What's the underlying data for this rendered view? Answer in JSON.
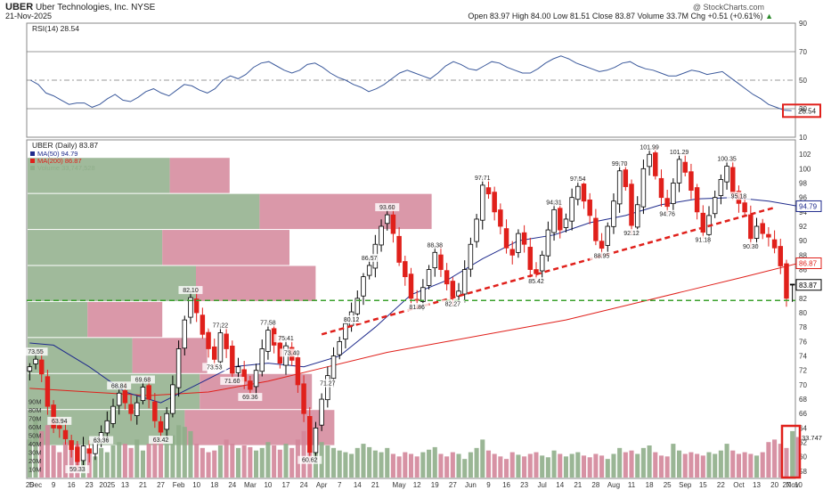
{
  "header": {
    "symbol": "UBER",
    "company": "Uber Technologies, Inc.",
    "exchange": "NYSE",
    "date": "21-Nov-2025",
    "watermark": "@ StockCharts.com",
    "ohlc_text": "Open 83.97  High 84.00  Low 81.51  Close 83.87  Volume 33.7M  Chg +0.51 (+0.61%)",
    "change_marker": "▲"
  },
  "colors": {
    "up": "#000000",
    "down": "#e0201b",
    "ma50": "#1f2b8c",
    "ma200": "#e0201b",
    "rsi": "#3c5a9c",
    "vbp_up": "#8fae8a",
    "vbp_down": "#d3869a",
    "trend": "#e0201b",
    "support": "#3aa02c",
    "highlight": "#e0201b"
  },
  "chart_data": [
    {
      "type": "line",
      "panel": "RSI",
      "title": "RSI(14) 28.54",
      "ylim": [
        10,
        90
      ],
      "y_ticks": [
        10,
        30,
        50,
        70,
        90
      ],
      "reference_lines": [
        30,
        50,
        70
      ],
      "last_value": 28.54,
      "last_label": "28.54",
      "values": [
        50,
        47,
        41,
        39,
        36,
        33,
        34,
        34,
        31,
        33,
        37,
        40,
        36,
        35,
        38,
        42,
        44,
        41,
        39,
        43,
        47,
        46,
        43,
        41,
        44,
        50,
        53,
        51,
        54,
        59,
        62,
        63,
        60,
        57,
        55,
        57,
        61,
        62,
        59,
        55,
        52,
        50,
        47,
        45,
        42,
        44,
        47,
        51,
        55,
        57,
        55,
        53,
        51,
        55,
        60,
        63,
        61,
        58,
        57,
        60,
        63,
        62,
        59,
        57,
        55,
        55,
        58,
        62,
        65,
        67,
        65,
        62,
        60,
        58,
        56,
        57,
        59,
        62,
        63,
        60,
        58,
        57,
        55,
        53,
        53,
        55,
        57,
        56,
        54,
        55,
        56,
        52,
        48,
        44,
        40,
        37,
        33,
        31,
        29,
        28.54
      ]
    },
    {
      "type": "candlestick",
      "panel": "Price",
      "title": "UBER (Daily) 83.87",
      "legend": [
        "MA(50) 94.79",
        "MA(200) 86.87",
        "Volume 33,747,528"
      ],
      "legend_colors": [
        "#1f2b8c",
        "#e0201b",
        "#8fae8a"
      ],
      "ylim": [
        57,
        104
      ],
      "y_ticks": [
        58,
        60,
        62,
        64,
        66,
        68,
        70,
        72,
        74,
        76,
        78,
        80,
        82,
        84,
        86,
        88,
        90,
        92,
        94,
        96,
        98,
        100,
        102
      ],
      "vol_ticks": [
        10,
        20,
        30,
        40,
        50,
        60,
        70,
        80,
        90
      ],
      "vol_tick_labels": [
        "10M",
        "20M",
        "30M",
        "40M",
        "50M",
        "60M",
        "70M",
        "80M",
        "90M"
      ],
      "closes": [
        72.5,
        73.55,
        71.5,
        67.0,
        64.0,
        63.94,
        62.5,
        61.0,
        59.33,
        61.5,
        60.5,
        62.0,
        63.36,
        65.0,
        67.0,
        68.84,
        67.5,
        66.0,
        67.5,
        69.68,
        68.0,
        65.0,
        63.42,
        66.0,
        70.0,
        75.0,
        79.0,
        82.1,
        80.0,
        77.0,
        75.0,
        73.53,
        77.22,
        75.0,
        71.6,
        72.5,
        70.5,
        69.36,
        72.0,
        75.0,
        77.58,
        75.5,
        73.0,
        75.41,
        73.4,
        70.0,
        66.0,
        60.62,
        64.0,
        68.0,
        71.27,
        74.0,
        76.0,
        78.5,
        80.12,
        82.0,
        85.0,
        86.57,
        89.5,
        92.0,
        93.6,
        91.0,
        87.0,
        85.0,
        82.0,
        81.86,
        83.5,
        86.0,
        88.38,
        86.0,
        84.0,
        82.27,
        83.0,
        86.0,
        89.5,
        93.0,
        97.71,
        96.5,
        94.0,
        92.0,
        89.0,
        88.0,
        91.0,
        89.5,
        86.0,
        85.42,
        88.0,
        91.5,
        94.31,
        91.5,
        93.0,
        96.0,
        97.54,
        95.5,
        93.5,
        90.0,
        88.95,
        92.0,
        95.5,
        99.7,
        97.5,
        92.12,
        95.0,
        100.0,
        101.99,
        99.0,
        96.0,
        94.76,
        98.0,
        101.29,
        99.5,
        97.0,
        94.0,
        91.18,
        93.5,
        96.0,
        98.5,
        100.35,
        96.5,
        95.18,
        94.0,
        90.3,
        92.0,
        91.0,
        90.5,
        89.0,
        86.5,
        82.0,
        83.87
      ],
      "ohlc_last": {
        "open": 83.97,
        "high": 84.0,
        "low": 81.51,
        "close": 83.87
      },
      "annotations": [
        {
          "i": 1,
          "v": 73.55,
          "text": "73.55",
          "pos": "above"
        },
        {
          "i": 5,
          "v": 63.94,
          "text": "63.94",
          "pos": "above"
        },
        {
          "i": 8,
          "v": 59.33,
          "text": "59.33",
          "pos": "below"
        },
        {
          "i": 12,
          "v": 63.36,
          "text": "63.36",
          "pos": "below"
        },
        {
          "i": 15,
          "v": 68.84,
          "text": "68.84",
          "pos": "above"
        },
        {
          "i": 19,
          "v": 69.68,
          "text": "69.68",
          "pos": "above"
        },
        {
          "i": 22,
          "v": 63.42,
          "text": "63.42",
          "pos": "below"
        },
        {
          "i": 27,
          "v": 82.1,
          "text": "82.10",
          "pos": "above"
        },
        {
          "i": 31,
          "v": 73.53,
          "text": "73.53",
          "pos": "below"
        },
        {
          "i": 32,
          "v": 77.22,
          "text": "77.22",
          "pos": "above"
        },
        {
          "i": 34,
          "v": 71.6,
          "text": "71.60",
          "pos": "below"
        },
        {
          "i": 37,
          "v": 69.36,
          "text": "69.36",
          "pos": "below"
        },
        {
          "i": 40,
          "v": 77.58,
          "text": "77.58",
          "pos": "above"
        },
        {
          "i": 43,
          "v": 75.41,
          "text": "75.41",
          "pos": "above"
        },
        {
          "i": 44,
          "v": 73.4,
          "text": "73.40",
          "pos": "above"
        },
        {
          "i": 47,
          "v": 60.62,
          "text": "60.62",
          "pos": "below"
        },
        {
          "i": 50,
          "v": 71.27,
          "text": "71.27",
          "pos": "below"
        },
        {
          "i": 54,
          "v": 80.12,
          "text": "80.12",
          "pos": "below"
        },
        {
          "i": 57,
          "v": 86.57,
          "text": "86.57",
          "pos": "above"
        },
        {
          "i": 60,
          "v": 93.6,
          "text": "93.60",
          "pos": "above"
        },
        {
          "i": 65,
          "v": 81.86,
          "text": "81.86",
          "pos": "below"
        },
        {
          "i": 68,
          "v": 88.38,
          "text": "88.38",
          "pos": "above"
        },
        {
          "i": 71,
          "v": 82.27,
          "text": "82.27",
          "pos": "below"
        },
        {
          "i": 76,
          "v": 97.71,
          "text": "97.71",
          "pos": "above"
        },
        {
          "i": 85,
          "v": 85.42,
          "text": "85.42",
          "pos": "below"
        },
        {
          "i": 88,
          "v": 94.31,
          "text": "94.31",
          "pos": "above"
        },
        {
          "i": 92,
          "v": 97.54,
          "text": "97.54",
          "pos": "above"
        },
        {
          "i": 96,
          "v": 88.95,
          "text": "88.95",
          "pos": "below"
        },
        {
          "i": 99,
          "v": 99.7,
          "text": "99.70",
          "pos": "above"
        },
        {
          "i": 101,
          "v": 92.12,
          "text": "92.12",
          "pos": "below"
        },
        {
          "i": 104,
          "v": 101.99,
          "text": "101.99",
          "pos": "above"
        },
        {
          "i": 107,
          "v": 94.76,
          "text": "94.76",
          "pos": "below"
        },
        {
          "i": 109,
          "v": 101.29,
          "text": "101.29",
          "pos": "above"
        },
        {
          "i": 113,
          "v": 91.18,
          "text": "91.18",
          "pos": "below"
        },
        {
          "i": 117,
          "v": 100.35,
          "text": "100.35",
          "pos": "above"
        },
        {
          "i": 119,
          "v": 95.18,
          "text": "95.18",
          "pos": "above"
        },
        {
          "i": 121,
          "v": 90.3,
          "text": "90.30",
          "pos": "below"
        }
      ],
      "ma50_last": "94.79",
      "ma200_last": "86.87",
      "close_last": "83.87",
      "vol_last": "33.747",
      "ma50": [
        [
          0,
          75.8
        ],
        [
          4,
          75.5
        ],
        [
          10,
          72.5
        ],
        [
          16,
          69.0
        ],
        [
          22,
          67.5
        ],
        [
          28,
          70.0
        ],
        [
          34,
          72.5
        ],
        [
          40,
          73.0
        ],
        [
          46,
          72.5
        ],
        [
          52,
          74.0
        ],
        [
          58,
          78.0
        ],
        [
          64,
          82.5
        ],
        [
          70,
          84.5
        ],
        [
          76,
          87.5
        ],
        [
          82,
          90.0
        ],
        [
          88,
          90.8
        ],
        [
          94,
          92.5
        ],
        [
          100,
          93.5
        ],
        [
          106,
          95.0
        ],
        [
          112,
          95.8
        ],
        [
          118,
          96.0
        ],
        [
          124,
          95.5
        ],
        [
          129,
          94.79
        ]
      ],
      "ma200": [
        [
          0,
          69.5
        ],
        [
          10,
          69.0
        ],
        [
          20,
          68.5
        ],
        [
          30,
          69.0
        ],
        [
          40,
          70.5
        ],
        [
          50,
          72.5
        ],
        [
          60,
          74.5
        ],
        [
          70,
          76.0
        ],
        [
          80,
          77.5
        ],
        [
          90,
          79.0
        ],
        [
          100,
          81.0
        ],
        [
          110,
          83.0
        ],
        [
          120,
          85.0
        ],
        [
          129,
          86.87
        ]
      ],
      "trendline": [
        [
          49,
          77.0
        ],
        [
          125,
          94.6
        ]
      ],
      "support_level": 81.7,
      "volume_m": [
        45,
        72,
        55,
        62,
        38,
        30,
        42,
        35,
        40,
        28,
        33,
        25,
        35,
        30,
        38,
        42,
        40,
        35,
        45,
        32,
        40,
        48,
        42,
        58,
        50,
        62,
        60,
        55,
        40,
        35,
        30,
        32,
        38,
        45,
        40,
        35,
        38,
        36,
        32,
        35,
        42,
        38,
        33,
        40,
        35,
        45,
        55,
        70,
        48,
        42,
        38,
        35,
        32,
        30,
        28,
        35,
        40,
        36,
        32,
        30,
        35,
        28,
        25,
        30,
        28,
        25,
        30,
        33,
        36,
        28,
        25,
        30,
        28,
        22,
        30,
        35,
        45,
        32,
        28,
        25,
        22,
        30,
        27,
        25,
        28,
        30,
        26,
        24,
        32,
        28,
        25,
        28,
        30,
        26,
        24,
        28,
        26,
        22,
        28,
        35,
        30,
        32,
        28,
        35,
        38,
        30,
        26,
        25,
        40,
        32,
        28,
        30,
        28,
        26,
        30,
        28,
        32,
        40,
        32,
        28,
        30,
        28,
        26,
        30,
        42,
        45,
        40,
        35,
        55,
        48
      ],
      "volume_by_price": [
        {
          "price_low": 96.5,
          "price_high": 101.5,
          "up": 0.38,
          "down": 0.16
        },
        {
          "price_low": 91.5,
          "price_high": 96.5,
          "up": 0.62,
          "down": 0.46
        },
        {
          "price_low": 86.5,
          "price_high": 91.5,
          "up": 0.36,
          "down": 0.34
        },
        {
          "price_low": 81.5,
          "price_high": 86.5,
          "up": 0.45,
          "down": 0.32
        },
        {
          "price_low": 76.5,
          "price_high": 81.5,
          "up": 0.16,
          "down": 0.2
        },
        {
          "price_low": 71.5,
          "price_high": 76.5,
          "up": 0.28,
          "down": 0.2
        },
        {
          "price_low": 66.5,
          "price_high": 71.5,
          "up": 0.46,
          "down": 0.3
        },
        {
          "price_low": 61.5,
          "price_high": 66.5,
          "up": 0.42,
          "down": 0.4
        }
      ],
      "x_ticks": [
        {
          "i": 0,
          "label": "25"
        },
        {
          "i": 1,
          "label": "Dec"
        },
        {
          "i": 4,
          "label": "9"
        },
        {
          "i": 7,
          "label": "16"
        },
        {
          "i": 10,
          "label": "23"
        },
        {
          "i": 13,
          "label": "2025"
        },
        {
          "i": 16,
          "label": "13"
        },
        {
          "i": 19,
          "label": "21"
        },
        {
          "i": 22,
          "label": "27"
        },
        {
          "i": 25,
          "label": "Feb"
        },
        {
          "i": 28,
          "label": "10"
        },
        {
          "i": 31,
          "label": "18"
        },
        {
          "i": 34,
          "label": "24"
        },
        {
          "i": 37,
          "label": "Mar"
        },
        {
          "i": 40,
          "label": "10"
        },
        {
          "i": 43,
          "label": "17"
        },
        {
          "i": 46,
          "label": "24"
        },
        {
          "i": 49,
          "label": "Apr"
        },
        {
          "i": 52,
          "label": "7"
        },
        {
          "i": 55,
          "label": "14"
        },
        {
          "i": 58,
          "label": "21"
        },
        {
          "i": 62,
          "label": "May"
        },
        {
          "i": 65,
          "label": "12"
        },
        {
          "i": 68,
          "label": "19"
        },
        {
          "i": 71,
          "label": "27"
        },
        {
          "i": 74,
          "label": "Jun"
        },
        {
          "i": 77,
          "label": "9"
        },
        {
          "i": 80,
          "label": "16"
        },
        {
          "i": 83,
          "label": "23"
        },
        {
          "i": 86,
          "label": "Jul"
        },
        {
          "i": 89,
          "label": "14"
        },
        {
          "i": 92,
          "label": "21"
        },
        {
          "i": 95,
          "label": "28"
        },
        {
          "i": 98,
          "label": "Aug"
        },
        {
          "i": 101,
          "label": "11"
        },
        {
          "i": 104,
          "label": "18"
        },
        {
          "i": 107,
          "label": "25"
        },
        {
          "i": 110,
          "label": "Sep"
        },
        {
          "i": 113,
          "label": "15"
        },
        {
          "i": 116,
          "label": "22"
        },
        {
          "i": 119,
          "label": "Oct"
        },
        {
          "i": 122,
          "label": "13"
        },
        {
          "i": 125,
          "label": "20"
        },
        {
          "i": 127,
          "label": "27"
        },
        {
          "i": 128,
          "label": "Nov"
        },
        {
          "i": 129,
          "label": "10"
        }
      ]
    }
  ]
}
